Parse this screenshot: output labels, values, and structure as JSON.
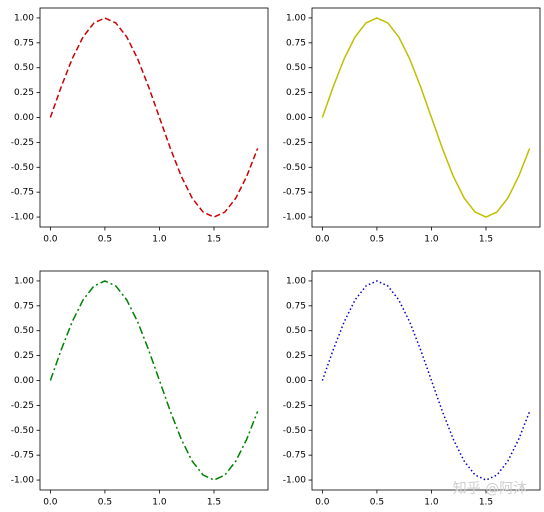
{
  "chart_data": [
    {
      "type": "line",
      "x": [
        0,
        0.1,
        0.2,
        0.3,
        0.4,
        0.5,
        0.6,
        0.7,
        0.8,
        0.9,
        1.0,
        1.1,
        1.2,
        1.3,
        1.4,
        1.5,
        1.6,
        1.7,
        1.8,
        1.9
      ],
      "series": [
        {
          "color": "#cc0000",
          "linestyle": "dashed",
          "values": [
            0,
            0.31,
            0.59,
            0.81,
            0.95,
            1,
            0.95,
            0.81,
            0.59,
            0.31,
            0,
            -0.31,
            -0.59,
            -0.81,
            -0.95,
            -1,
            -0.95,
            -0.81,
            -0.59,
            -0.31
          ]
        }
      ],
      "xlim": [
        -0.095,
        1.995
      ],
      "ylim": [
        -1.1,
        1.1
      ],
      "xticks": [
        {
          "value": 0,
          "label": "0.0"
        },
        {
          "value": 0.5,
          "label": "0.5"
        },
        {
          "value": 1,
          "label": "1.0"
        },
        {
          "value": 1.5,
          "label": "1.5"
        }
      ],
      "yticks": [
        {
          "value": 1,
          "label": "1.00"
        },
        {
          "value": 0.75,
          "label": "0.75"
        },
        {
          "value": 0.5,
          "label": "0.50"
        },
        {
          "value": 0.25,
          "label": "0.25"
        },
        {
          "value": 0,
          "label": "0.00"
        },
        {
          "value": -0.25,
          "label": "-0.25"
        },
        {
          "value": -0.5,
          "label": "-0.50"
        },
        {
          "value": -0.75,
          "label": "-0.75"
        },
        {
          "value": -1,
          "label": "-1.00"
        }
      ]
    },
    {
      "type": "line",
      "x": [
        0,
        0.1,
        0.2,
        0.3,
        0.4,
        0.5,
        0.6,
        0.7,
        0.8,
        0.9,
        1.0,
        1.1,
        1.2,
        1.3,
        1.4,
        1.5,
        1.6,
        1.7,
        1.8,
        1.9
      ],
      "series": [
        {
          "color": "#bfbf00",
          "linestyle": "solid",
          "values": [
            0,
            0.31,
            0.59,
            0.81,
            0.95,
            1,
            0.95,
            0.81,
            0.59,
            0.31,
            0,
            -0.31,
            -0.59,
            -0.81,
            -0.95,
            -1,
            -0.95,
            -0.81,
            -0.59,
            -0.31
          ]
        }
      ],
      "xlim": [
        -0.095,
        1.995
      ],
      "ylim": [
        -1.1,
        1.1
      ],
      "xticks": [
        {
          "value": 0,
          "label": "0.0"
        },
        {
          "value": 0.5,
          "label": "0.5"
        },
        {
          "value": 1,
          "label": "1.0"
        },
        {
          "value": 1.5,
          "label": "1.5"
        }
      ],
      "yticks": [
        {
          "value": 1,
          "label": "1.00"
        },
        {
          "value": 0.75,
          "label": "0.75"
        },
        {
          "value": 0.5,
          "label": "0.50"
        },
        {
          "value": 0.25,
          "label": "0.25"
        },
        {
          "value": 0,
          "label": "0.00"
        },
        {
          "value": -0.25,
          "label": "-0.25"
        },
        {
          "value": -0.5,
          "label": "-0.50"
        },
        {
          "value": -0.75,
          "label": "-0.75"
        },
        {
          "value": -1,
          "label": "-1.00"
        }
      ]
    },
    {
      "type": "line",
      "x": [
        0,
        0.1,
        0.2,
        0.3,
        0.4,
        0.5,
        0.6,
        0.7,
        0.8,
        0.9,
        1.0,
        1.1,
        1.2,
        1.3,
        1.4,
        1.5,
        1.6,
        1.7,
        1.8,
        1.9
      ],
      "series": [
        {
          "color": "#008000",
          "linestyle": "dashdot",
          "values": [
            0,
            0.31,
            0.59,
            0.81,
            0.95,
            1,
            0.95,
            0.81,
            0.59,
            0.31,
            0,
            -0.31,
            -0.59,
            -0.81,
            -0.95,
            -1,
            -0.95,
            -0.81,
            -0.59,
            -0.31
          ]
        }
      ],
      "xlim": [
        -0.095,
        1.995
      ],
      "ylim": [
        -1.1,
        1.1
      ],
      "xticks": [
        {
          "value": 0,
          "label": "0.0"
        },
        {
          "value": 0.5,
          "label": "0.5"
        },
        {
          "value": 1,
          "label": "1.0"
        },
        {
          "value": 1.5,
          "label": "1.5"
        }
      ],
      "yticks": [
        {
          "value": 1,
          "label": "1.00"
        },
        {
          "value": 0.75,
          "label": "0.75"
        },
        {
          "value": 0.5,
          "label": "0.50"
        },
        {
          "value": 0.25,
          "label": "0.25"
        },
        {
          "value": 0,
          "label": "0.00"
        },
        {
          "value": -0.25,
          "label": "-0.25"
        },
        {
          "value": -0.5,
          "label": "-0.50"
        },
        {
          "value": -0.75,
          "label": "-0.75"
        },
        {
          "value": -1,
          "label": "-1.00"
        }
      ]
    },
    {
      "type": "line",
      "x": [
        0,
        0.1,
        0.2,
        0.3,
        0.4,
        0.5,
        0.6,
        0.7,
        0.8,
        0.9,
        1.0,
        1.1,
        1.2,
        1.3,
        1.4,
        1.5,
        1.6,
        1.7,
        1.8,
        1.9
      ],
      "series": [
        {
          "color": "#0000cc",
          "linestyle": "dotted",
          "values": [
            0,
            0.31,
            0.59,
            0.81,
            0.95,
            1,
            0.95,
            0.81,
            0.59,
            0.31,
            0,
            -0.31,
            -0.59,
            -0.81,
            -0.95,
            -1,
            -0.95,
            -0.81,
            -0.59,
            -0.31
          ]
        }
      ],
      "xlim": [
        -0.095,
        1.995
      ],
      "ylim": [
        -1.1,
        1.1
      ],
      "xticks": [
        {
          "value": 0,
          "label": "0.0"
        },
        {
          "value": 0.5,
          "label": "0.5"
        },
        {
          "value": 1,
          "label": "1.0"
        },
        {
          "value": 1.5,
          "label": "1.5"
        }
      ],
      "yticks": [
        {
          "value": 1,
          "label": "1.00"
        },
        {
          "value": 0.75,
          "label": "0.75"
        },
        {
          "value": 0.5,
          "label": "0.50"
        },
        {
          "value": 0.25,
          "label": "0.25"
        },
        {
          "value": 0,
          "label": "0.00"
        },
        {
          "value": -0.25,
          "label": "-0.25"
        },
        {
          "value": -0.5,
          "label": "-0.50"
        },
        {
          "value": -0.75,
          "label": "-0.75"
        },
        {
          "value": -1,
          "label": "-1.00"
        }
      ]
    }
  ],
  "watermark": "知乎 @阿沐"
}
